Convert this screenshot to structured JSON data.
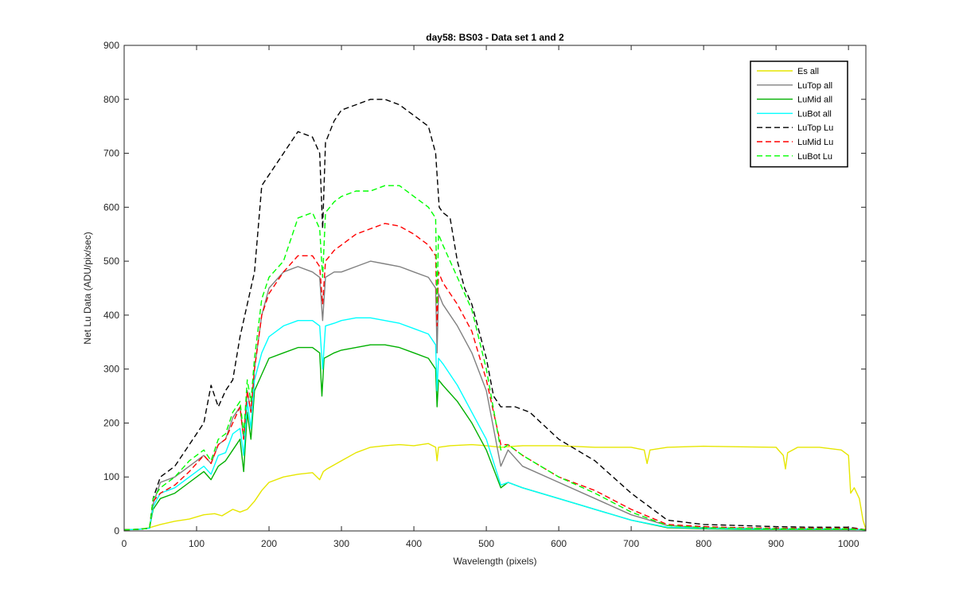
{
  "chart_data": {
    "type": "line",
    "title": "day58: BS03 - Data set 1 and 2",
    "xlabel": "Wavelength (pixels)",
    "ylabel": "Net Lu Data (ADU/pix/sec)",
    "xlim": [
      0,
      1024
    ],
    "ylim": [
      0,
      900
    ],
    "xticks": [
      0,
      100,
      200,
      300,
      400,
      500,
      600,
      700,
      800,
      900,
      1000
    ],
    "yticks": [
      0,
      100,
      200,
      300,
      400,
      500,
      600,
      700,
      800,
      900
    ],
    "grid": false,
    "legend_position": "top-right",
    "series": [
      {
        "name": "Es  all",
        "color": "#e6e600",
        "dash": "solid",
        "x": [
          0,
          20,
          35,
          50,
          70,
          90,
          110,
          125,
          135,
          150,
          160,
          170,
          180,
          190,
          200,
          220,
          240,
          260,
          270,
          275,
          280,
          300,
          320,
          340,
          360,
          380,
          400,
          420,
          430,
          432,
          434,
          450,
          480,
          500,
          520,
          550,
          600,
          650,
          700,
          718,
          722,
          726,
          750,
          800,
          850,
          900,
          910,
          913,
          916,
          930,
          960,
          990,
          1000,
          1003,
          1008,
          1015,
          1020,
          1024
        ],
        "y": [
          2,
          3,
          6,
          12,
          18,
          22,
          30,
          32,
          28,
          40,
          35,
          40,
          55,
          75,
          90,
          100,
          105,
          108,
          95,
          110,
          115,
          130,
          145,
          155,
          158,
          160,
          158,
          162,
          155,
          130,
          155,
          158,
          160,
          158,
          155,
          158,
          158,
          155,
          155,
          150,
          125,
          150,
          155,
          157,
          156,
          155,
          140,
          115,
          145,
          155,
          155,
          150,
          140,
          70,
          80,
          60,
          20,
          3
        ]
      },
      {
        "name": "LuTop  all",
        "color": "#808080",
        "dash": "solid",
        "x": [
          0,
          20,
          35,
          40,
          50,
          70,
          90,
          110,
          120,
          130,
          140,
          150,
          160,
          165,
          170,
          175,
          180,
          190,
          200,
          220,
          240,
          260,
          270,
          274,
          278,
          290,
          300,
          320,
          340,
          360,
          380,
          400,
          420,
          430,
          432,
          434,
          440,
          460,
          480,
          500,
          520,
          530,
          550,
          600,
          650,
          700,
          750,
          800,
          850,
          900,
          950,
          1000,
          1010,
          1024
        ],
        "y": [
          2,
          3,
          5,
          50,
          90,
          100,
          120,
          140,
          125,
          160,
          170,
          210,
          230,
          170,
          260,
          220,
          300,
          400,
          450,
          480,
          490,
          480,
          470,
          390,
          470,
          480,
          480,
          490,
          500,
          495,
          490,
          480,
          470,
          450,
          330,
          440,
          420,
          380,
          330,
          260,
          120,
          150,
          120,
          90,
          60,
          30,
          10,
          6,
          5,
          4,
          4,
          3,
          3,
          2
        ]
      },
      {
        "name": "LuMid  all",
        "color": "#00b000",
        "dash": "solid",
        "x": [
          0,
          20,
          35,
          40,
          50,
          70,
          90,
          110,
          120,
          130,
          140,
          150,
          160,
          165,
          170,
          175,
          180,
          190,
          200,
          220,
          240,
          260,
          270,
          273,
          276,
          290,
          300,
          320,
          340,
          360,
          380,
          400,
          420,
          430,
          432,
          434,
          440,
          460,
          480,
          500,
          520,
          530,
          550,
          600,
          650,
          700,
          750,
          800,
          850,
          900,
          950,
          1000,
          1010,
          1024
        ],
        "y": [
          2,
          3,
          5,
          40,
          60,
          70,
          90,
          110,
          95,
          120,
          130,
          150,
          170,
          110,
          220,
          170,
          260,
          290,
          320,
          330,
          340,
          340,
          330,
          250,
          320,
          330,
          335,
          340,
          345,
          345,
          340,
          330,
          320,
          300,
          230,
          280,
          270,
          240,
          200,
          150,
          80,
          90,
          80,
          60,
          40,
          20,
          6,
          4,
          3,
          3,
          3,
          3,
          3,
          2
        ]
      },
      {
        "name": "LuBot  all",
        "color": "#00ffff",
        "dash": "solid",
        "x": [
          0,
          20,
          35,
          40,
          50,
          70,
          90,
          110,
          120,
          130,
          140,
          150,
          160,
          165,
          170,
          175,
          180,
          190,
          200,
          220,
          240,
          260,
          270,
          274,
          278,
          290,
          300,
          320,
          340,
          360,
          380,
          400,
          420,
          430,
          432,
          434,
          440,
          460,
          480,
          500,
          520,
          530,
          550,
          600,
          650,
          700,
          750,
          800,
          850,
          900,
          950,
          1000,
          1010,
          1024
        ],
        "y": [
          2,
          3,
          5,
          45,
          70,
          80,
          100,
          120,
          105,
          140,
          145,
          180,
          190,
          140,
          240,
          190,
          280,
          330,
          360,
          380,
          390,
          390,
          380,
          300,
          380,
          385,
          390,
          395,
          395,
          390,
          385,
          375,
          365,
          345,
          260,
          320,
          310,
          270,
          220,
          170,
          85,
          90,
          80,
          60,
          40,
          20,
          7,
          5,
          4,
          4,
          4,
          4,
          3,
          2
        ]
      },
      {
        "name": "LuTop  Lu",
        "color": "#000000",
        "dash": "dashed",
        "x": [
          0,
          20,
          35,
          40,
          50,
          70,
          90,
          110,
          120,
          130,
          140,
          150,
          160,
          170,
          180,
          190,
          200,
          220,
          240,
          260,
          270,
          274,
          278,
          290,
          300,
          320,
          340,
          360,
          380,
          400,
          420,
          430,
          435,
          440,
          450,
          460,
          470,
          480,
          500,
          510,
          520,
          540,
          560,
          600,
          650,
          700,
          750,
          800,
          850,
          900,
          950,
          1000,
          1010,
          1024
        ],
        "y": [
          2,
          3,
          5,
          60,
          100,
          120,
          160,
          200,
          270,
          230,
          260,
          280,
          360,
          420,
          480,
          640,
          660,
          700,
          740,
          730,
          700,
          560,
          720,
          760,
          780,
          790,
          800,
          800,
          790,
          770,
          750,
          700,
          600,
          590,
          580,
          500,
          450,
          420,
          320,
          250,
          230,
          230,
          220,
          170,
          130,
          70,
          20,
          12,
          10,
          8,
          7,
          7,
          5,
          2
        ]
      },
      {
        "name": "LuMid  Lu",
        "color": "#ff0000",
        "dash": "dashed",
        "x": [
          0,
          20,
          35,
          40,
          50,
          70,
          90,
          110,
          120,
          130,
          140,
          150,
          160,
          165,
          170,
          175,
          180,
          190,
          200,
          220,
          240,
          260,
          270,
          274,
          278,
          290,
          300,
          320,
          340,
          360,
          380,
          400,
          420,
          430,
          432,
          434,
          440,
          460,
          480,
          500,
          520,
          530,
          550,
          600,
          650,
          700,
          750,
          800,
          850,
          900,
          950,
          1000,
          1010,
          1024
        ],
        "y": [
          2,
          3,
          5,
          55,
          70,
          85,
          110,
          140,
          125,
          160,
          170,
          200,
          230,
          170,
          260,
          220,
          300,
          400,
          440,
          480,
          510,
          510,
          490,
          420,
          500,
          520,
          530,
          550,
          560,
          570,
          565,
          550,
          530,
          510,
          380,
          480,
          460,
          420,
          370,
          280,
          160,
          160,
          140,
          100,
          75,
          40,
          12,
          8,
          6,
          5,
          5,
          5,
          4,
          2
        ]
      },
      {
        "name": "LuBot  Lu",
        "color": "#00ff00",
        "dash": "dashed",
        "x": [
          0,
          20,
          35,
          40,
          50,
          70,
          90,
          110,
          120,
          130,
          140,
          150,
          160,
          165,
          170,
          175,
          180,
          190,
          200,
          220,
          240,
          260,
          270,
          274,
          278,
          290,
          300,
          320,
          340,
          360,
          380,
          400,
          420,
          430,
          432,
          434,
          440,
          460,
          480,
          500,
          520,
          530,
          550,
          600,
          650,
          700,
          750,
          800,
          850,
          900,
          950,
          1000,
          1010,
          1024
        ],
        "y": [
          2,
          3,
          5,
          60,
          80,
          100,
          130,
          150,
          130,
          170,
          180,
          220,
          240,
          180,
          280,
          240,
          320,
          430,
          470,
          500,
          580,
          590,
          560,
          470,
          590,
          610,
          620,
          630,
          630,
          640,
          640,
          620,
          600,
          580,
          420,
          550,
          530,
          470,
          410,
          300,
          150,
          160,
          140,
          100,
          70,
          35,
          10,
          6,
          5,
          4,
          4,
          4,
          3,
          2
        ]
      }
    ]
  }
}
